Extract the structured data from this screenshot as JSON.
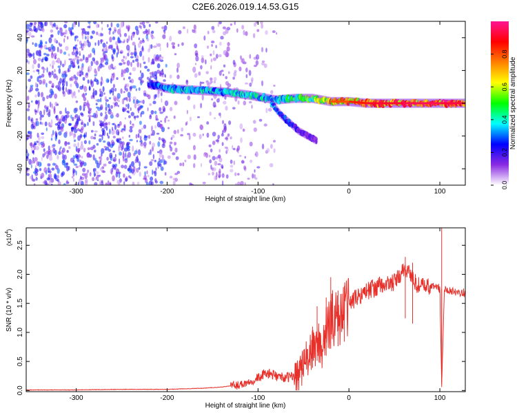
{
  "title": "C2E6.2026.019.14.53.G15",
  "chart_data": [
    {
      "type": "heatmap",
      "xlabel": "Height of straight line (km)",
      "ylabel": "Frequency (Hz)",
      "xlim": [
        -355,
        128
      ],
      "ylim": [
        -50,
        50
      ],
      "xticks": [
        -300,
        -200,
        -100,
        0,
        100
      ],
      "xtick_labels": [
        "-300",
        "-200",
        "-100",
        "0",
        "100"
      ],
      "yticks": [
        -40,
        -20,
        0,
        20,
        40
      ],
      "ytick_labels": [
        "-40",
        "-20",
        "0",
        "20",
        "40"
      ],
      "colorbar": {
        "label": "Normalized spectral amplitude",
        "range": [
          0,
          1
        ],
        "ticks": [
          0.0,
          0.2,
          0.4,
          0.6,
          0.8
        ],
        "tick_labels": [
          "0.0",
          "0.2",
          "0.4",
          "0.6",
          "0.8"
        ],
        "colors": [
          "#ffffff",
          "#8a2be2",
          "#0000ff",
          "#00ffff",
          "#00ff00",
          "#ffff00",
          "#ff8000",
          "#ff0000",
          "#ff1493"
        ]
      },
      "noise_region": {
        "x": [
          -355,
          -150
        ],
        "frequency_range": [
          -50,
          50
        ],
        "amplitude": [
          0.05,
          0.3
        ]
      },
      "main_signal": [
        {
          "x": -220,
          "frequency": 12,
          "amplitude": 0.25
        },
        {
          "x": -200,
          "frequency": 9,
          "amplitude": 0.4
        },
        {
          "x": -170,
          "frequency": 8,
          "amplitude": 0.42
        },
        {
          "x": -140,
          "frequency": 7,
          "amplitude": 0.4
        },
        {
          "x": -110,
          "frequency": 5,
          "amplitude": 0.42
        },
        {
          "x": -80,
          "frequency": 2,
          "amplitude": 0.45
        },
        {
          "x": -60,
          "frequency": 3,
          "amplitude": 0.5
        },
        {
          "x": -40,
          "frequency": 3,
          "amplitude": 0.55
        },
        {
          "x": -20,
          "frequency": 1,
          "amplitude": 0.8
        },
        {
          "x": 0,
          "frequency": 1,
          "amplitude": 0.85
        },
        {
          "x": 20,
          "frequency": 0,
          "amplitude": 0.92
        },
        {
          "x": 60,
          "frequency": 0,
          "amplitude": 0.95
        },
        {
          "x": 100,
          "frequency": 0,
          "amplitude": 0.93
        },
        {
          "x": 128,
          "frequency": 0,
          "amplitude": 0.9
        }
      ],
      "branch_signal": [
        {
          "x": -85,
          "frequency": 0,
          "amplitude": 0.35
        },
        {
          "x": -75,
          "frequency": -7,
          "amplitude": 0.3
        },
        {
          "x": -65,
          "frequency": -12,
          "amplitude": 0.28
        },
        {
          "x": -55,
          "frequency": -17,
          "amplitude": 0.22
        },
        {
          "x": -45,
          "frequency": -20,
          "amplitude": 0.18
        },
        {
          "x": -35,
          "frequency": -23,
          "amplitude": 0.15
        }
      ]
    },
    {
      "type": "line",
      "xlabel": "Height of straight line (km)",
      "ylabel": "SNR (10 * v/v)",
      "yscale_label": "(x10",
      "yscale_exponent": "4",
      "xlim": [
        -355,
        128
      ],
      "ylim": [
        -0.02,
        2.8
      ],
      "xticks": [
        -300,
        -200,
        -100,
        0,
        100
      ],
      "xtick_labels": [
        "-300",
        "-200",
        "-100",
        "0",
        "100"
      ],
      "yticks": [
        0.0,
        0.5,
        1.0,
        1.5,
        2.0,
        2.5
      ],
      "ytick_labels": [
        "0.0",
        "0.5",
        "1.0",
        "1.5",
        "2.0",
        "2.5"
      ],
      "series": [
        {
          "name": "SNR",
          "color": "#e8302a",
          "x": [
            -355,
            -300,
            -250,
            -200,
            -180,
            -160,
            -140,
            -120,
            -110,
            -100,
            -90,
            -80,
            -70,
            -60,
            -50,
            -45,
            -40,
            -35,
            -30,
            -25,
            -20,
            -15,
            -10,
            -5,
            0,
            10,
            20,
            30,
            40,
            50,
            55,
            60,
            65,
            70,
            75,
            80,
            90,
            95,
            100,
            102,
            105,
            110,
            120,
            128
          ],
          "y": [
            0.01,
            0.01,
            0.02,
            0.02,
            0.03,
            0.04,
            0.06,
            0.1,
            0.15,
            0.22,
            0.3,
            0.25,
            0.22,
            0.25,
            0.4,
            0.6,
            0.65,
            0.85,
            0.75,
            1.0,
            1.2,
            1.3,
            1.25,
            1.4,
            1.5,
            1.62,
            1.72,
            1.78,
            1.82,
            1.86,
            1.95,
            2.05,
            2.1,
            1.92,
            1.82,
            1.8,
            1.78,
            1.8,
            1.76,
            0.1,
            1.74,
            1.73,
            1.7,
            1.68
          ],
          "spikes": [
            {
              "x": -40,
              "y": 1.1
            },
            {
              "x": -35,
              "y": 1.45
            },
            {
              "x": -25,
              "y": 1.6
            },
            {
              "x": -20,
              "y": 1.95
            },
            {
              "x": -12,
              "y": 1.72
            },
            {
              "x": -5,
              "y": 1.8
            },
            {
              "x": 62,
              "y": 2.3
            },
            {
              "x": 70,
              "y": 2.2
            },
            {
              "x": 102,
              "y": 2.8
            }
          ]
        }
      ]
    }
  ]
}
